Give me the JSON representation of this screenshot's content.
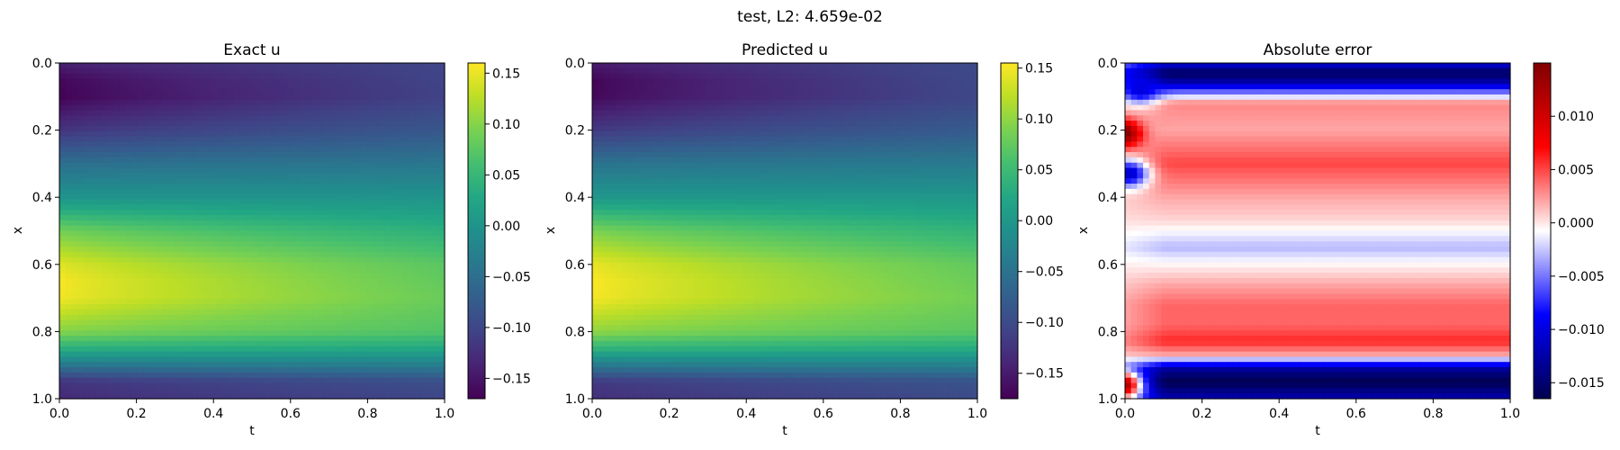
{
  "figure": {
    "suptitle": "test, L2: 4.659e-02"
  },
  "chart_data": [
    {
      "type": "heatmap",
      "title": "Exact u",
      "xlabel": "t",
      "ylabel": "x",
      "xlim": [
        0.0,
        1.0
      ],
      "ylim": [
        1.0,
        0.0
      ],
      "x_ticks": [
        "0.0",
        "0.2",
        "0.4",
        "0.6",
        "0.8",
        "1.0"
      ],
      "y_ticks": [
        "0.0",
        "0.2",
        "0.4",
        "0.6",
        "0.8",
        "1.0"
      ],
      "colormap": "viridis",
      "clim": [
        -0.17,
        0.16
      ],
      "colorbar_ticks": [
        "0.15",
        "0.10",
        "0.05",
        "0.00",
        "−0.05",
        "−0.10",
        "−0.15"
      ],
      "colorbar_tick_values": [
        0.15,
        0.1,
        0.05,
        0.0,
        -0.05,
        -0.1,
        -0.15
      ],
      "profile_at_t0": {
        "x": [
          0.0,
          0.05,
          0.1,
          0.2,
          0.3,
          0.4,
          0.5,
          0.6,
          0.65,
          0.7,
          0.8,
          0.85,
          0.9,
          0.95,
          1.0
        ],
        "u": [
          -0.14,
          -0.165,
          -0.17,
          -0.12,
          -0.05,
          0.0,
          0.09,
          0.145,
          0.158,
          0.155,
          0.1,
          0.04,
          -0.04,
          -0.12,
          -0.13
        ]
      },
      "profile_at_t1": {
        "x": [
          0.0,
          0.1,
          0.2,
          0.3,
          0.4,
          0.5,
          0.6,
          0.7,
          0.8,
          0.85,
          0.9,
          0.95,
          1.0
        ],
        "u": [
          -0.1,
          -0.105,
          -0.08,
          -0.04,
          0.0,
          0.04,
          0.075,
          0.085,
          0.07,
          0.03,
          -0.03,
          -0.09,
          -0.1
        ]
      }
    },
    {
      "type": "heatmap",
      "title": "Predicted u",
      "xlabel": "t",
      "ylabel": "x",
      "xlim": [
        0.0,
        1.0
      ],
      "ylim": [
        1.0,
        0.0
      ],
      "x_ticks": [
        "0.0",
        "0.2",
        "0.4",
        "0.6",
        "0.8",
        "1.0"
      ],
      "y_ticks": [
        "0.0",
        "0.2",
        "0.4",
        "0.6",
        "0.8",
        "1.0"
      ],
      "colormap": "viridis",
      "clim": [
        -0.175,
        0.155
      ],
      "colorbar_ticks": [
        "0.15",
        "0.10",
        "0.05",
        "0.00",
        "−0.05",
        "−0.10",
        "−0.15"
      ],
      "colorbar_tick_values": [
        0.15,
        0.1,
        0.05,
        0.0,
        -0.05,
        -0.1,
        -0.15
      ],
      "profile_at_t0": {
        "x": [
          0.0,
          0.05,
          0.1,
          0.2,
          0.3,
          0.4,
          0.5,
          0.6,
          0.65,
          0.7,
          0.8,
          0.85,
          0.9,
          0.95,
          1.0
        ],
        "u": [
          -0.15,
          -0.172,
          -0.17,
          -0.12,
          -0.05,
          0.0,
          0.09,
          0.145,
          0.155,
          0.152,
          0.1,
          0.04,
          -0.04,
          -0.12,
          -0.13
        ]
      },
      "profile_at_t1": {
        "x": [
          0.0,
          0.1,
          0.2,
          0.3,
          0.4,
          0.5,
          0.6,
          0.7,
          0.8,
          0.85,
          0.9,
          0.95,
          1.0
        ],
        "u": [
          -0.1,
          -0.105,
          -0.08,
          -0.04,
          0.0,
          0.04,
          0.075,
          0.085,
          0.07,
          0.03,
          -0.03,
          -0.09,
          -0.1
        ]
      }
    },
    {
      "type": "heatmap",
      "title": "Absolute error",
      "xlabel": "t",
      "ylabel": "x",
      "xlim": [
        0.0,
        1.0
      ],
      "ylim": [
        1.0,
        0.0
      ],
      "x_ticks": [
        "0.0",
        "0.2",
        "0.4",
        "0.6",
        "0.8",
        "1.0"
      ],
      "y_ticks": [
        "0.0",
        "0.2",
        "0.4",
        "0.6",
        "0.8",
        "1.0"
      ],
      "colormap": "seismic",
      "clim": [
        -0.0165,
        0.015
      ],
      "colorbar_ticks": [
        "0.010",
        "0.005",
        "0.000",
        "−0.005",
        "−0.010",
        "−0.015"
      ],
      "colorbar_tick_values": [
        0.01,
        0.005,
        0.0,
        -0.005,
        -0.01,
        -0.015
      ],
      "error_bands": {
        "x": [
          0.0,
          0.03,
          0.06,
          0.12,
          0.2,
          0.3,
          0.4,
          0.47,
          0.55,
          0.6,
          0.66,
          0.72,
          0.78,
          0.83,
          0.87,
          0.91,
          0.95,
          1.0
        ],
        "e": [
          -0.01,
          -0.016,
          -0.012,
          0.003,
          0.002,
          0.005,
          0.002,
          0.0005,
          -0.003,
          -0.0005,
          0.002,
          0.004,
          0.004,
          0.006,
          0.002,
          -0.013,
          -0.0165,
          -0.012
        ]
      },
      "local_features": [
        {
          "t": 0.0,
          "x": 0.21,
          "e": 0.011
        },
        {
          "t": 0.02,
          "x": 0.33,
          "e": -0.008
        },
        {
          "t": 0.0,
          "x": 0.96,
          "e": 0.006
        },
        {
          "t": 0.05,
          "x": 0.08,
          "e": -0.01
        }
      ]
    }
  ]
}
